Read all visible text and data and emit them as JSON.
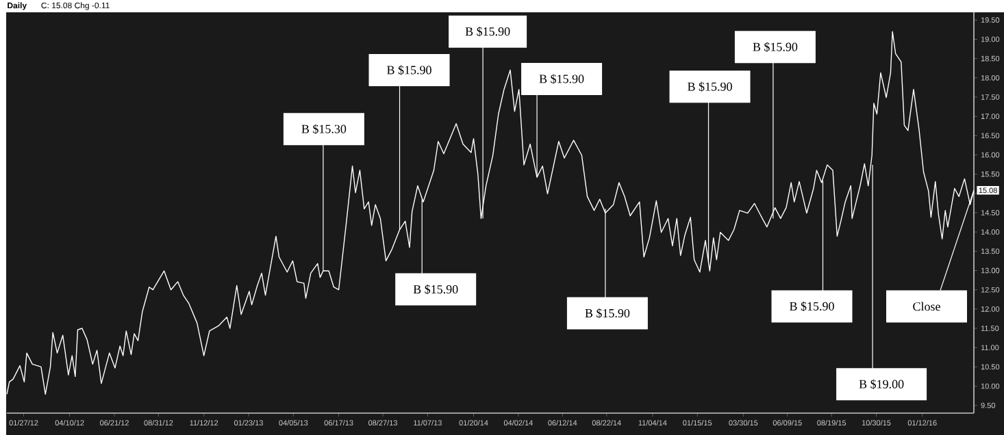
{
  "chart_data": {
    "type": "line",
    "title": "Daily",
    "subtitle": "C: 15.08  Chg -0.11",
    "x": [
      "2011-12-31",
      "2012-01-04",
      "2012-01-10",
      "2012-01-21",
      "2012-01-28",
      "2012-02-01",
      "2012-02-10",
      "2012-02-24",
      "2012-03-02",
      "2012-03-10",
      "2012-03-14",
      "2012-03-21",
      "2012-03-30",
      "2012-04-08",
      "2012-04-14",
      "2012-04-19",
      "2012-04-23",
      "2012-04-30",
      "2012-05-08",
      "2012-05-17",
      "2012-05-24",
      "2012-05-31",
      "2012-06-13",
      "2012-06-22",
      "2012-06-30",
      "2012-07-05",
      "2012-07-10",
      "2012-07-18",
      "2012-07-23",
      "2012-07-29",
      "2012-08-05",
      "2012-08-16",
      "2012-08-22",
      "2012-09-09",
      "2012-09-20",
      "2012-10-01",
      "2012-10-10",
      "2012-10-19",
      "2012-11-01",
      "2012-11-12",
      "2012-11-21",
      "2012-12-06",
      "2012-12-19",
      "2012-12-24",
      "2013-01-04",
      "2013-01-11",
      "2013-01-24",
      "2013-01-28",
      "2013-02-06",
      "2013-02-13",
      "2013-02-19",
      "2013-03-02",
      "2013-03-08",
      "2013-03-13",
      "2013-03-26",
      "2013-04-04",
      "2013-04-11",
      "2013-04-22",
      "2013-04-25",
      "2013-05-03",
      "2013-05-14",
      "2013-05-18",
      "2013-05-23",
      "2013-06-01",
      "2013-06-09",
      "2013-06-17",
      "2013-06-23",
      "2013-06-29",
      "2013-07-09",
      "2013-07-14",
      "2013-07-21",
      "2013-07-28",
      "2013-08-04",
      "2013-08-09",
      "2013-08-15",
      "2013-08-23",
      "2013-09-01",
      "2013-09-10",
      "2013-09-23",
      "2013-10-02",
      "2013-10-09",
      "2013-10-13",
      "2013-10-22",
      "2013-10-31",
      "2013-11-17",
      "2013-11-24",
      "2013-12-03",
      "2013-12-23",
      "2014-01-03",
      "2014-01-16",
      "2014-01-20",
      "2014-01-27",
      "2014-02-01",
      "2014-02-09",
      "2014-02-20",
      "2014-03-01",
      "2014-03-10",
      "2014-03-20",
      "2014-03-27",
      "2014-04-03",
      "2014-04-11",
      "2014-04-21",
      "2014-05-02",
      "2014-05-11",
      "2014-05-19",
      "2014-06-06",
      "2014-06-15",
      "2014-06-30",
      "2014-07-13",
      "2014-07-22",
      "2014-08-02",
      "2014-08-11",
      "2014-08-20",
      "2014-09-02",
      "2014-09-11",
      "2014-09-20",
      "2014-09-29",
      "2014-10-14",
      "2014-10-21",
      "2014-10-30",
      "2014-11-10",
      "2014-11-18",
      "2014-11-29",
      "2014-12-06",
      "2014-12-13",
      "2014-12-19",
      "2014-12-26",
      "2015-01-04",
      "2015-01-10",
      "2015-01-19",
      "2015-01-28",
      "2015-02-04",
      "2015-02-10",
      "2015-02-15",
      "2015-02-21",
      "2015-03-06",
      "2015-03-15",
      "2015-03-24",
      "2015-04-06",
      "2015-04-17",
      "2015-04-26",
      "2015-05-07",
      "2015-05-20",
      "2015-05-29",
      "2015-06-07",
      "2015-06-15",
      "2015-06-20",
      "2015-06-28",
      "2015-07-10",
      "2015-07-21",
      "2015-07-26",
      "2015-08-03",
      "2015-08-12",
      "2015-08-21",
      "2015-08-28",
      "2015-09-03",
      "2015-09-10",
      "2015-09-19",
      "2015-09-21",
      "2015-10-04",
      "2015-10-11",
      "2015-10-17",
      "2015-10-23",
      "2015-10-26",
      "2015-10-31",
      "2015-11-06",
      "2015-11-15",
      "2015-11-22",
      "2015-11-25",
      "2015-11-30",
      "2015-12-09",
      "2015-12-14",
      "2015-12-20",
      "2015-12-29",
      "2016-01-07",
      "2016-01-14",
      "2016-01-22",
      "2016-01-26",
      "2016-02-02",
      "2016-02-07",
      "2016-02-13",
      "2016-02-18",
      "2016-02-22",
      "2016-03-04",
      "2016-03-11",
      "2016-03-20",
      "2016-03-29",
      "2016-04-04"
    ],
    "series": [
      {
        "color": "#ffffff",
        "values": [
          9.79,
          10.11,
          10.18,
          10.53,
          10.11,
          10.86,
          10.57,
          10.5,
          9.79,
          10.5,
          11.39,
          10.86,
          11.32,
          10.29,
          10.79,
          10.25,
          11.46,
          11.5,
          11.21,
          10.57,
          10.93,
          10.07,
          10.86,
          10.47,
          11.04,
          10.79,
          11.43,
          10.82,
          11.36,
          11.18,
          11.93,
          12.57,
          12.5,
          12.99,
          12.5,
          12.71,
          12.36,
          12.14,
          11.64,
          10.79,
          11.43,
          11.57,
          11.79,
          11.5,
          12.61,
          11.86,
          12.46,
          12.11,
          12.61,
          12.93,
          12.36,
          13.35,
          13.89,
          13.35,
          12.96,
          13.25,
          12.71,
          12.67,
          12.28,
          12.93,
          13.18,
          12.82,
          12.99,
          12.99,
          12.57,
          12.5,
          13.35,
          14.21,
          15.71,
          15.02,
          15.6,
          14.6,
          14.78,
          14.17,
          14.71,
          14.35,
          13.25,
          13.53,
          14.06,
          14.28,
          13.6,
          14.53,
          15.2,
          14.78,
          15.6,
          16.35,
          16.03,
          16.81,
          16.28,
          16.06,
          16.42,
          15.49,
          14.35,
          15.2,
          15.99,
          17.06,
          17.7,
          18.2,
          17.13,
          17.7,
          15.74,
          16.28,
          15.42,
          15.71,
          14.99,
          16.35,
          15.92,
          16.38,
          15.99,
          14.92,
          14.56,
          14.85,
          14.49,
          14.71,
          15.28,
          14.92,
          14.42,
          14.78,
          13.35,
          13.85,
          14.81,
          13.99,
          14.35,
          13.64,
          14.35,
          13.39,
          13.92,
          14.38,
          13.28,
          12.96,
          13.78,
          12.99,
          13.85,
          13.28,
          13.99,
          13.78,
          14.06,
          14.56,
          14.49,
          14.74,
          14.46,
          14.13,
          14.63,
          14.35,
          14.63,
          15.28,
          14.78,
          15.31,
          14.49,
          15.13,
          15.6,
          15.28,
          15.74,
          15.6,
          13.89,
          14.28,
          14.78,
          15.2,
          14.35,
          15.2,
          15.77,
          15.2,
          15.99,
          17.34,
          17.06,
          18.13,
          17.49,
          18.13,
          19.2,
          18.63,
          18.41,
          16.77,
          16.63,
          17.7,
          16.63,
          15.56,
          15.06,
          14.38,
          15.31,
          14.46,
          13.82,
          14.56,
          14.13,
          15.13,
          14.92,
          15.38,
          14.71,
          15.08
        ]
      }
    ],
    "xlim": [
      "2011-12-31",
      "2016-04-04"
    ],
    "xticks": [
      {
        "value": "2012-01-27",
        "label": "01/27/12"
      },
      {
        "value": "2012-04-10",
        "label": "04/10/12"
      },
      {
        "value": "2012-06-21",
        "label": "06/21/12"
      },
      {
        "value": "2012-08-31",
        "label": "08/31/12"
      },
      {
        "value": "2012-11-12",
        "label": "11/12/12"
      },
      {
        "value": "2013-01-23",
        "label": "01/23/13"
      },
      {
        "value": "2013-04-05",
        "label": "04/05/13"
      },
      {
        "value": "2013-06-17",
        "label": "06/17/13"
      },
      {
        "value": "2013-08-27",
        "label": "08/27/13"
      },
      {
        "value": "2013-11-07",
        "label": "11/07/13"
      },
      {
        "value": "2014-01-20",
        "label": "01/20/14"
      },
      {
        "value": "2014-04-02",
        "label": "04/02/14"
      },
      {
        "value": "2014-06-12",
        "label": "06/12/14"
      },
      {
        "value": "2014-08-22",
        "label": "08/22/14"
      },
      {
        "value": "2014-11-04",
        "label": "11/04/14"
      },
      {
        "value": "2015-01-15",
        "label": "01/15/15"
      },
      {
        "value": "2015-03-30",
        "label": "03/30/15"
      },
      {
        "value": "2015-06-09",
        "label": "06/09/15"
      },
      {
        "value": "2015-08-19",
        "label": "08/19/15"
      },
      {
        "value": "2015-10-30",
        "label": "10/30/15"
      },
      {
        "value": "2016-01-12",
        "label": "01/12/16"
      }
    ],
    "ylim": [
      9.3,
      19.7
    ],
    "yticks": [
      {
        "value": 9.5,
        "label": "9.50"
      },
      {
        "value": 10,
        "label": "10.00"
      },
      {
        "value": 10.5,
        "label": "10.50"
      },
      {
        "value": 11,
        "label": "11.00"
      },
      {
        "value": 11.5,
        "label": "11.50"
      },
      {
        "value": 12,
        "label": "12.00"
      },
      {
        "value": 12.5,
        "label": "12.50"
      },
      {
        "value": 13,
        "label": "13.00"
      },
      {
        "value": 13.5,
        "label": "13.50"
      },
      {
        "value": 14,
        "label": "14.00"
      },
      {
        "value": 14.5,
        "label": "14.50"
      },
      {
        "value": 15,
        "label": null
      },
      {
        "value": 15.5,
        "label": "15.50"
      },
      {
        "value": 16,
        "label": "16.00"
      },
      {
        "value": 16.5,
        "label": "16.50"
      },
      {
        "value": 17,
        "label": "17.00"
      },
      {
        "value": 17.5,
        "label": "17.50"
      },
      {
        "value": 18,
        "label": "18.00"
      },
      {
        "value": 18.5,
        "label": "18.50"
      },
      {
        "value": 19,
        "label": "19.00"
      },
      {
        "value": 19.5,
        "label": "19.50"
      }
    ],
    "annotations": [
      {
        "text": "B $15.30",
        "x": "2013-05-23",
        "y": 12.99
      },
      {
        "text": "B $15.90",
        "x": "2013-09-23",
        "y": 14.06
      },
      {
        "text": "B $15.90",
        "x": "2013-10-29",
        "y": 14.85
      },
      {
        "text": "B $15.90",
        "x": "2014-02-04",
        "y": 14.35
      },
      {
        "text": "B $15.90",
        "x": "2014-05-02",
        "y": 15.42
      },
      {
        "text": "B $15.90",
        "x": "2014-08-20",
        "y": 14.6
      },
      {
        "text": "B $15.90",
        "x": "2015-02-02",
        "y": 13.21
      },
      {
        "text": "B $15.90",
        "x": "2015-05-17",
        "y": 14.35
      },
      {
        "text": "B $15.90",
        "x": "2015-08-05",
        "y": 15.33
      },
      {
        "text": "B $19.00",
        "x": "2015-10-24",
        "y": 15.74
      },
      {
        "text": "Close",
        "x": "2016-04-04",
        "y": 15.08
      },
      {
        "text": "15.08",
        "x": "2016-04-04",
        "y": 15.08
      }
    ],
    "grid": false,
    "marker": "none",
    "line_style": "solid"
  }
}
